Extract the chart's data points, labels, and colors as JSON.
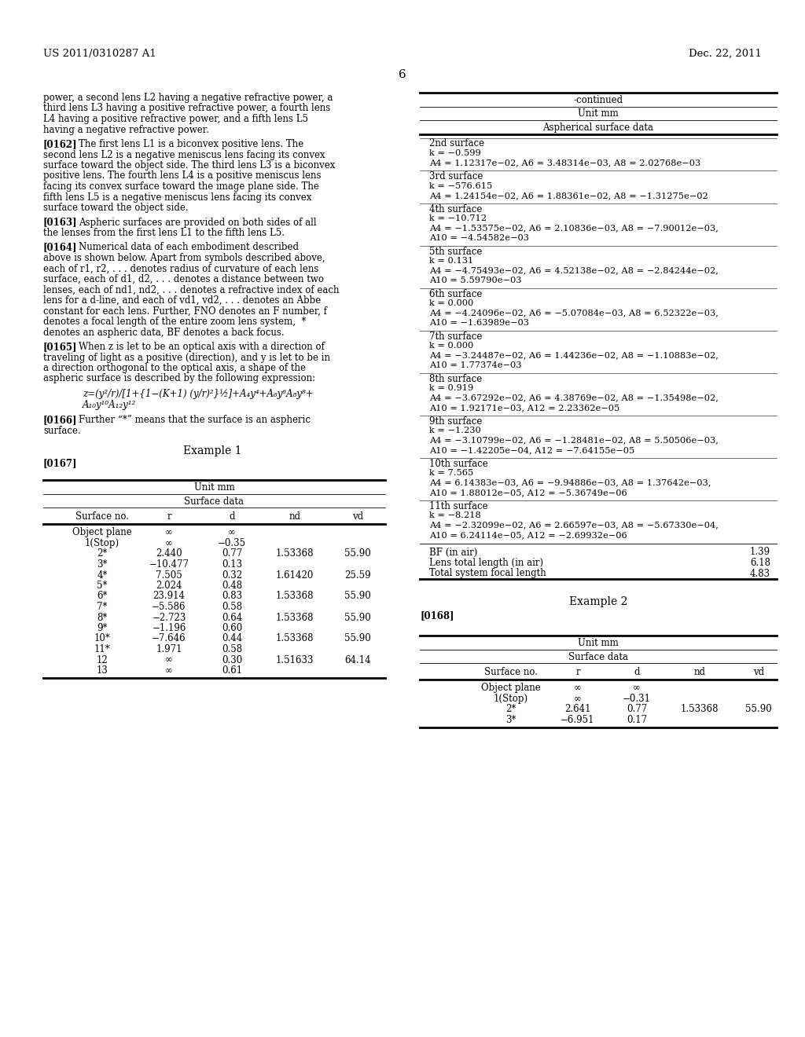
{
  "page_header_left": "US 2011/0310287 A1",
  "page_header_right": "Dec. 22, 2011",
  "page_number": "6",
  "bg_color": "#ffffff",
  "left_body_lines": [
    "power, a second lens L2 having a negative refractive power, a",
    "third lens L3 having a positive refractive power, a fourth lens",
    "L4 having a positive refractive power, and a fifth lens L5",
    "having a negative refractive power."
  ],
  "para_0162_first": "The first lens L1 is a biconvex positive lens. The",
  "para_0162_rest": [
    "second lens L2 is a negative meniscus lens facing its convex",
    "surface toward the object side. The third lens L3 is a biconvex",
    "positive lens. The fourth lens L4 is a positive meniscus lens",
    "facing its convex surface toward the image plane side. The",
    "fifth lens L5 is a negative meniscus lens facing its convex",
    "surface toward the object side."
  ],
  "para_0163_first": "Aspheric surfaces are provided on both sides of all",
  "para_0163_rest": [
    "the lenses from the first lens L1 to the fifth lens L5."
  ],
  "para_0164_first": "Numerical data of each embodiment described",
  "para_0164_rest": [
    "above is shown below. Apart from symbols described above,",
    "each of r1, r2, . . . denotes radius of curvature of each lens",
    "surface, each of d1, d2, . . . denotes a distance between two",
    "lenses, each of nd1, nd2, . . . denotes a refractive index of each",
    "lens for a d-line, and each of vd1, vd2, . . . denotes an Abbe",
    "constant for each lens. Further, FNO denotes an F number, f",
    "denotes a focal length of the entire zoom lens system,  *",
    "denotes an aspheric data, BF denotes a back focus."
  ],
  "para_0165_first": "When z is let to be an optical axis with a direction of",
  "para_0165_rest": [
    "traveling of light as a positive (direction), and y is let to be in",
    "a direction orthogonal to the optical axis, a shape of the",
    "aspheric surface is described by the following expression:"
  ],
  "formula_line1": "z=(y²/r)/[1+{1−(K+1) (y/r)²}½]+A₄y⁴+A₆y⁶A₈y⁸+",
  "formula_line2": "A₁₀y¹⁰A₁₂y¹²",
  "para_0166_first": "Further “*” means that the surface is an aspheric",
  "para_0166_rest": [
    "surface."
  ],
  "example1_heading": "Example 1",
  "tag_0167": "[0167]",
  "left_table_unit": "Unit mm",
  "left_table_subtitle": "Surface data",
  "left_table_col_headers": [
    "Surface no.",
    "r",
    "d",
    "nd",
    "vd"
  ],
  "left_table_rows": [
    [
      "Object plane",
      "∞",
      "∞",
      "",
      ""
    ],
    [
      "1(Stop)",
      "∞",
      "−0.35",
      "",
      ""
    ],
    [
      "2*",
      "2.440",
      "0.77",
      "1.53368",
      "55.90"
    ],
    [
      "3*",
      "−10.477",
      "0.13",
      "",
      ""
    ],
    [
      "4*",
      "7.505",
      "0.32",
      "1.61420",
      "25.59"
    ],
    [
      "5*",
      "2.024",
      "0.48",
      "",
      ""
    ],
    [
      "6*",
      "23.914",
      "0.83",
      "1.53368",
      "55.90"
    ],
    [
      "7*",
      "−5.586",
      "0.58",
      "",
      ""
    ],
    [
      "8*",
      "−2.723",
      "0.64",
      "1.53368",
      "55.90"
    ],
    [
      "9*",
      "−1.196",
      "0.60",
      "",
      ""
    ],
    [
      "10*",
      "−7.646",
      "0.44",
      "1.53368",
      "55.90"
    ],
    [
      "11*",
      "1.971",
      "0.58",
      "",
      ""
    ],
    [
      "12",
      "∞",
      "0.30",
      "1.51633",
      "64.14"
    ],
    [
      "13",
      "∞",
      "0.61",
      "",
      ""
    ]
  ],
  "right_continued_label": "-continued",
  "right_unit": "Unit mm",
  "right_subtitle": "Aspherical surface data",
  "right_sections": [
    {
      "label": "2nd surface",
      "lines": [
        "k = −0.599",
        "A4 = 1.12317e−02, A6 = 3.48314e−03, A8 = 2.02768e−03"
      ]
    },
    {
      "label": "3rd surface",
      "lines": [
        "k = −576.615",
        "A4 = 1.24154e−02, A6 = 1.88361e−02, A8 = −1.31275e−02"
      ]
    },
    {
      "label": "4th surface",
      "lines": [
        "k = −10.712",
        "A4 = −1.53575e−02, A6 = 2.10836e−03, A8 = −7.90012e−03,",
        "A10 = −4.54582e−03"
      ]
    },
    {
      "label": "5th surface",
      "lines": [
        "k = 0.131",
        "A4 = −4.75493e−02, A6 = 4.52138e−02, A8 = −2.84244e−02,",
        "A10 = 5.59790e−03"
      ]
    },
    {
      "label": "6th surface",
      "lines": [
        "k = 0.000",
        "A4 = −4.24096e−02, A6 = −5.07084e−03, A8 = 6.52322e−03,",
        "A10 = −1.63989e−03"
      ]
    },
    {
      "label": "7th surface",
      "lines": [
        "k = 0.000",
        "A4 = −3.24487e−02, A6 = 1.44236e−02, A8 = −1.10883e−02,",
        "A10 = 1.77374e−03"
      ]
    },
    {
      "label": "8th surface",
      "lines": [
        "k = 0.919",
        "A4 = −3.67292e−02, A6 = 4.38769e−02, A8 = −1.35498e−02,",
        "A10 = 1.92171e−03, A12 = 2.23362e−05"
      ]
    },
    {
      "label": "9th surface",
      "lines": [
        "k = −1.230",
        "A4 = −3.10799e−02, A6 = −1.28481e−02, A8 = 5.50506e−03,",
        "A10 = −1.42205e−04, A12 = −7.64155e−05"
      ]
    },
    {
      "label": "10th surface",
      "lines": [
        "k = 7.565",
        "A4 = 6.14383e−03, A6 = −9.94886e−03, A8 = 1.37642e−03,",
        "A10 = 1.88012e−05, A12 = −5.36749e−06"
      ]
    },
    {
      "label": "11th surface",
      "lines": [
        "k = −8.218",
        "A4 = −2.32099e−02, A6 = 2.66597e−03, A8 = −5.67330e−04,",
        "A10 = 6.24114e−05, A12 = −2.69932e−06"
      ]
    }
  ],
  "right_summary": [
    [
      "BF (in air)",
      "1.39"
    ],
    [
      "Lens total length (in air)",
      "6.18"
    ],
    [
      "Total system focal length",
      "4.83"
    ]
  ],
  "example2_heading": "Example 2",
  "tag_0168": "[0168]",
  "example2_unit": "Unit mm",
  "example2_subtitle": "Surface data",
  "example2_col_headers": [
    "Surface no.",
    "r",
    "d",
    "nd",
    "vd"
  ],
  "example2_rows": [
    [
      "Object plane",
      "∞",
      "∞",
      "",
      ""
    ],
    [
      "1(Stop)",
      "∞",
      "−0.31",
      "",
      ""
    ],
    [
      "2*",
      "2.641",
      "0.77",
      "1.53368",
      "55.90"
    ],
    [
      "3*",
      "−6.951",
      "0.17",
      "",
      ""
    ]
  ]
}
